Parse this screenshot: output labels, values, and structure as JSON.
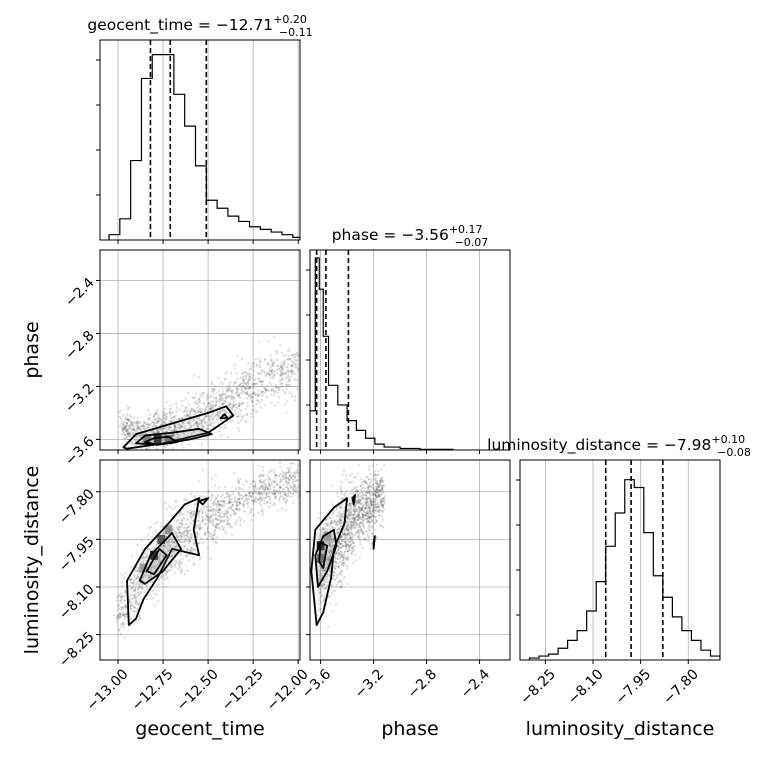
{
  "chart_data": {
    "type": "corner",
    "parameters": [
      "geocent_time",
      "phase",
      "luminosity_distance"
    ],
    "axis_labels": {
      "x": [
        "geocent_time",
        "phase",
        "luminosity_distance"
      ],
      "y": [
        "",
        "phase",
        "luminosity_distance"
      ]
    },
    "titles": [
      {
        "param": "geocent_time",
        "prefix": "geocent_time = ",
        "median": "−12.71",
        "plus": "+0.20",
        "minus": "−0.11"
      },
      {
        "param": "phase",
        "prefix": "phase = ",
        "median": "−3.56",
        "plus": "+0.17",
        "minus": "−0.07"
      },
      {
        "param": "luminosity_distance",
        "prefix": "luminosity_distance = ",
        "median": "−7.98",
        "plus": "+0.10",
        "minus": "−0.08"
      }
    ],
    "ranges": {
      "geocent_time": [
        -13.1,
        -11.99
      ],
      "phase": [
        -3.68,
        -2.17
      ],
      "luminosity_distance": [
        -8.33,
        -7.7
      ]
    },
    "ticks": {
      "geocent_time": [
        {
          "v": -13.0,
          "label": "−13.00"
        },
        {
          "v": -12.75,
          "label": "−12.75"
        },
        {
          "v": -12.5,
          "label": "−12.50"
        },
        {
          "v": -12.25,
          "label": "−12.25"
        },
        {
          "v": -12.0,
          "label": "−12.00"
        }
      ],
      "phase": [
        {
          "v": -3.6,
          "label": "−3.6"
        },
        {
          "v": -3.2,
          "label": "−3.2"
        },
        {
          "v": -2.8,
          "label": "−2.8"
        },
        {
          "v": -2.4,
          "label": "−2.4"
        }
      ],
      "luminosity_distance": [
        {
          "v": -8.25,
          "label": "−8.25"
        },
        {
          "v": -8.1,
          "label": "−8.10"
        },
        {
          "v": -7.95,
          "label": "−7.95"
        },
        {
          "v": -7.8,
          "label": "−7.80"
        }
      ]
    },
    "quantiles": {
      "geocent_time": [
        -12.82,
        -12.71,
        -12.51
      ],
      "phase": [
        -3.63,
        -3.56,
        -3.39
      ],
      "luminosity_distance": [
        -8.06,
        -7.98,
        -7.88
      ]
    },
    "histograms": {
      "geocent_time": {
        "edges": [
          -13.05,
          -12.99,
          -12.93,
          -12.87,
          -12.81,
          -12.75,
          -12.69,
          -12.63,
          -12.57,
          -12.51,
          -12.45,
          -12.39,
          -12.33,
          -12.27,
          -12.21,
          -12.15,
          -12.09,
          -12.03,
          -11.99
        ],
        "counts": [
          0.02,
          0.08,
          0.3,
          0.61,
          0.7,
          0.7,
          0.55,
          0.43,
          0.28,
          0.15,
          0.12,
          0.09,
          0.07,
          0.05,
          0.04,
          0.03,
          0.02,
          0.01
        ],
        "ymax": 0.74
      },
      "phase": {
        "edges": [
          -3.68,
          -3.64,
          -3.61,
          -3.58,
          -3.54,
          -3.47,
          -3.4,
          -3.33,
          -3.26,
          -3.19,
          -3.12,
          -3.0,
          -2.85,
          -2.6
        ],
        "counts": [
          0.2,
          0.98,
          0.82,
          0.58,
          0.33,
          0.23,
          0.15,
          0.1,
          0.06,
          0.03,
          0.015,
          0.008,
          0.003
        ],
        "ymax": 1.0
      },
      "luminosity_distance": {
        "edges": [
          -8.3,
          -8.27,
          -8.24,
          -8.21,
          -8.18,
          -8.15,
          -8.12,
          -8.09,
          -8.06,
          -8.03,
          -8.0,
          -7.97,
          -7.94,
          -7.91,
          -7.88,
          -7.85,
          -7.82,
          -7.79,
          -7.76,
          -7.73,
          -7.7
        ],
        "counts": [
          0.01,
          0.02,
          0.03,
          0.06,
          0.1,
          0.15,
          0.25,
          0.4,
          0.58,
          0.75,
          0.92,
          0.88,
          0.65,
          0.43,
          0.32,
          0.22,
          0.15,
          0.1,
          0.05,
          0.02
        ],
        "ymax": 1.0
      }
    },
    "scatter_bands": {
      "phase_vs_geocent_time": [
        {
          "x": -12.98,
          "yc": -3.52,
          "sy": 0.08
        },
        {
          "x": -12.85,
          "yc": -3.55,
          "sy": 0.06
        },
        {
          "x": -12.7,
          "yc": -3.52,
          "sy": 0.08
        },
        {
          "x": -12.55,
          "yc": -3.44,
          "sy": 0.09
        },
        {
          "x": -12.4,
          "yc": -3.32,
          "sy": 0.1
        },
        {
          "x": -12.25,
          "yc": -3.2,
          "sy": 0.1
        },
        {
          "x": -12.0,
          "yc": -3.05,
          "sy": 0.1
        }
      ],
      "luminosity_distance_vs_geocent_time": [
        {
          "x": -13.0,
          "yc": -8.2,
          "sy": 0.04
        },
        {
          "x": -12.85,
          "yc": -8.05,
          "sy": 0.05
        },
        {
          "x": -12.7,
          "yc": -7.97,
          "sy": 0.05
        },
        {
          "x": -12.55,
          "yc": -7.9,
          "sy": 0.05
        },
        {
          "x": -12.4,
          "yc": -7.85,
          "sy": 0.04
        },
        {
          "x": -12.2,
          "yc": -7.8,
          "sy": 0.03
        },
        {
          "x": -12.0,
          "yc": -7.76,
          "sy": 0.03
        }
      ],
      "luminosity_distance_vs_phase": [
        {
          "x": -3.62,
          "yc": -8.05,
          "sy": 0.07
        },
        {
          "x": -3.5,
          "yc": -7.98,
          "sy": 0.07
        },
        {
          "x": -3.38,
          "yc": -7.9,
          "sy": 0.07
        },
        {
          "x": -3.25,
          "yc": -7.85,
          "sy": 0.05
        },
        {
          "x": -3.12,
          "yc": -7.8,
          "sy": 0.04
        }
      ]
    },
    "contours": {
      "phase_vs_geocent_time": [
        [
          [
            -12.97,
            -3.66
          ],
          [
            -12.9,
            -3.56
          ],
          [
            -12.7,
            -3.48
          ],
          [
            -12.5,
            -3.4
          ],
          [
            -12.4,
            -3.35
          ],
          [
            -12.36,
            -3.42
          ],
          [
            -12.5,
            -3.55
          ],
          [
            -12.75,
            -3.63
          ],
          [
            -12.95,
            -3.67
          ],
          [
            -12.97,
            -3.66
          ]
        ],
        [
          [
            -12.9,
            -3.63
          ],
          [
            -12.85,
            -3.57
          ],
          [
            -12.7,
            -3.55
          ],
          [
            -12.55,
            -3.52
          ],
          [
            -12.48,
            -3.56
          ],
          [
            -12.6,
            -3.6
          ],
          [
            -12.78,
            -3.64
          ],
          [
            -12.9,
            -3.63
          ]
        ],
        [
          [
            -12.85,
            -3.62
          ],
          [
            -12.8,
            -3.59
          ],
          [
            -12.72,
            -3.58
          ],
          [
            -12.67,
            -3.62
          ],
          [
            -12.78,
            -3.64
          ],
          [
            -12.85,
            -3.62
          ]
        ],
        [
          [
            -12.43,
            -3.44
          ],
          [
            -12.41,
            -3.41
          ],
          [
            -12.39,
            -3.44
          ],
          [
            -12.43,
            -3.44
          ]
        ]
      ],
      "luminosity_distance_vs_geocent_time": [
        [
          [
            -12.94,
            -8.22
          ],
          [
            -12.95,
            -8.08
          ],
          [
            -12.85,
            -7.98
          ],
          [
            -12.72,
            -7.9
          ],
          [
            -12.63,
            -7.84
          ],
          [
            -12.55,
            -7.82
          ],
          [
            -12.58,
            -7.92
          ],
          [
            -12.55,
            -8.0
          ],
          [
            -12.7,
            -7.98
          ],
          [
            -12.78,
            -8.07
          ],
          [
            -12.86,
            -8.14
          ],
          [
            -12.9,
            -8.2
          ],
          [
            -12.94,
            -8.22
          ]
        ],
        [
          [
            -12.88,
            -8.08
          ],
          [
            -12.82,
            -8.0
          ],
          [
            -12.7,
            -7.93
          ],
          [
            -12.65,
            -7.98
          ],
          [
            -12.75,
            -8.05
          ],
          [
            -12.85,
            -8.09
          ],
          [
            -12.88,
            -8.08
          ]
        ],
        [
          [
            -12.84,
            -8.05
          ],
          [
            -12.77,
            -7.98
          ],
          [
            -12.73,
            -8.0
          ],
          [
            -12.8,
            -8.06
          ],
          [
            -12.84,
            -8.05
          ]
        ],
        [
          [
            -12.55,
            -7.83
          ],
          [
            -12.5,
            -7.82
          ],
          [
            -12.53,
            -7.84
          ],
          [
            -12.55,
            -7.83
          ]
        ]
      ],
      "luminosity_distance_vs_phase": [
        [
          [
            -3.63,
            -8.22
          ],
          [
            -3.67,
            -8.05
          ],
          [
            -3.64,
            -7.92
          ],
          [
            -3.5,
            -7.85
          ],
          [
            -3.4,
            -7.82
          ],
          [
            -3.42,
            -7.9
          ],
          [
            -3.5,
            -7.98
          ],
          [
            -3.52,
            -8.07
          ],
          [
            -3.58,
            -8.18
          ],
          [
            -3.63,
            -8.22
          ]
        ],
        [
          [
            -3.62,
            -8.1
          ],
          [
            -3.64,
            -8.0
          ],
          [
            -3.58,
            -7.94
          ],
          [
            -3.5,
            -7.92
          ],
          [
            -3.48,
            -7.97
          ],
          [
            -3.55,
            -8.05
          ],
          [
            -3.62,
            -8.1
          ]
        ],
        [
          [
            -3.61,
            -8.02
          ],
          [
            -3.6,
            -7.96
          ],
          [
            -3.55,
            -7.97
          ],
          [
            -3.58,
            -8.04
          ],
          [
            -3.61,
            -8.02
          ]
        ],
        [
          [
            -3.36,
            -7.82
          ],
          [
            -3.34,
            -7.81
          ],
          [
            -3.35,
            -7.84
          ],
          [
            -3.36,
            -7.82
          ]
        ],
        [
          [
            -3.2,
            -7.96
          ],
          [
            -3.19,
            -7.94
          ],
          [
            -3.2,
            -7.98
          ],
          [
            -3.2,
            -7.96
          ]
        ]
      ]
    },
    "density_cells": {
      "phase_vs_geocent_time": [
        {
          "x": -12.78,
          "y": -3.6,
          "level": 1.0
        },
        {
          "x": -12.72,
          "y": -3.6,
          "level": 0.6
        },
        {
          "x": -12.84,
          "y": -3.6,
          "level": 0.5
        }
      ],
      "luminosity_distance_vs_geocent_time": [
        {
          "x": -12.8,
          "y": -8.0,
          "level": 1.0
        },
        {
          "x": -12.76,
          "y": -7.95,
          "level": 0.7
        },
        {
          "x": -12.72,
          "y": -7.92,
          "level": 0.4
        },
        {
          "x": -12.86,
          "y": -8.04,
          "level": 0.35
        }
      ],
      "luminosity_distance_vs_phase": [
        {
          "x": -3.6,
          "y": -7.97,
          "level": 1.0
        },
        {
          "x": -3.6,
          "y": -8.01,
          "level": 0.6
        },
        {
          "x": -3.55,
          "y": -7.94,
          "level": 0.35
        }
      ]
    },
    "grid": true,
    "legend": "none"
  }
}
